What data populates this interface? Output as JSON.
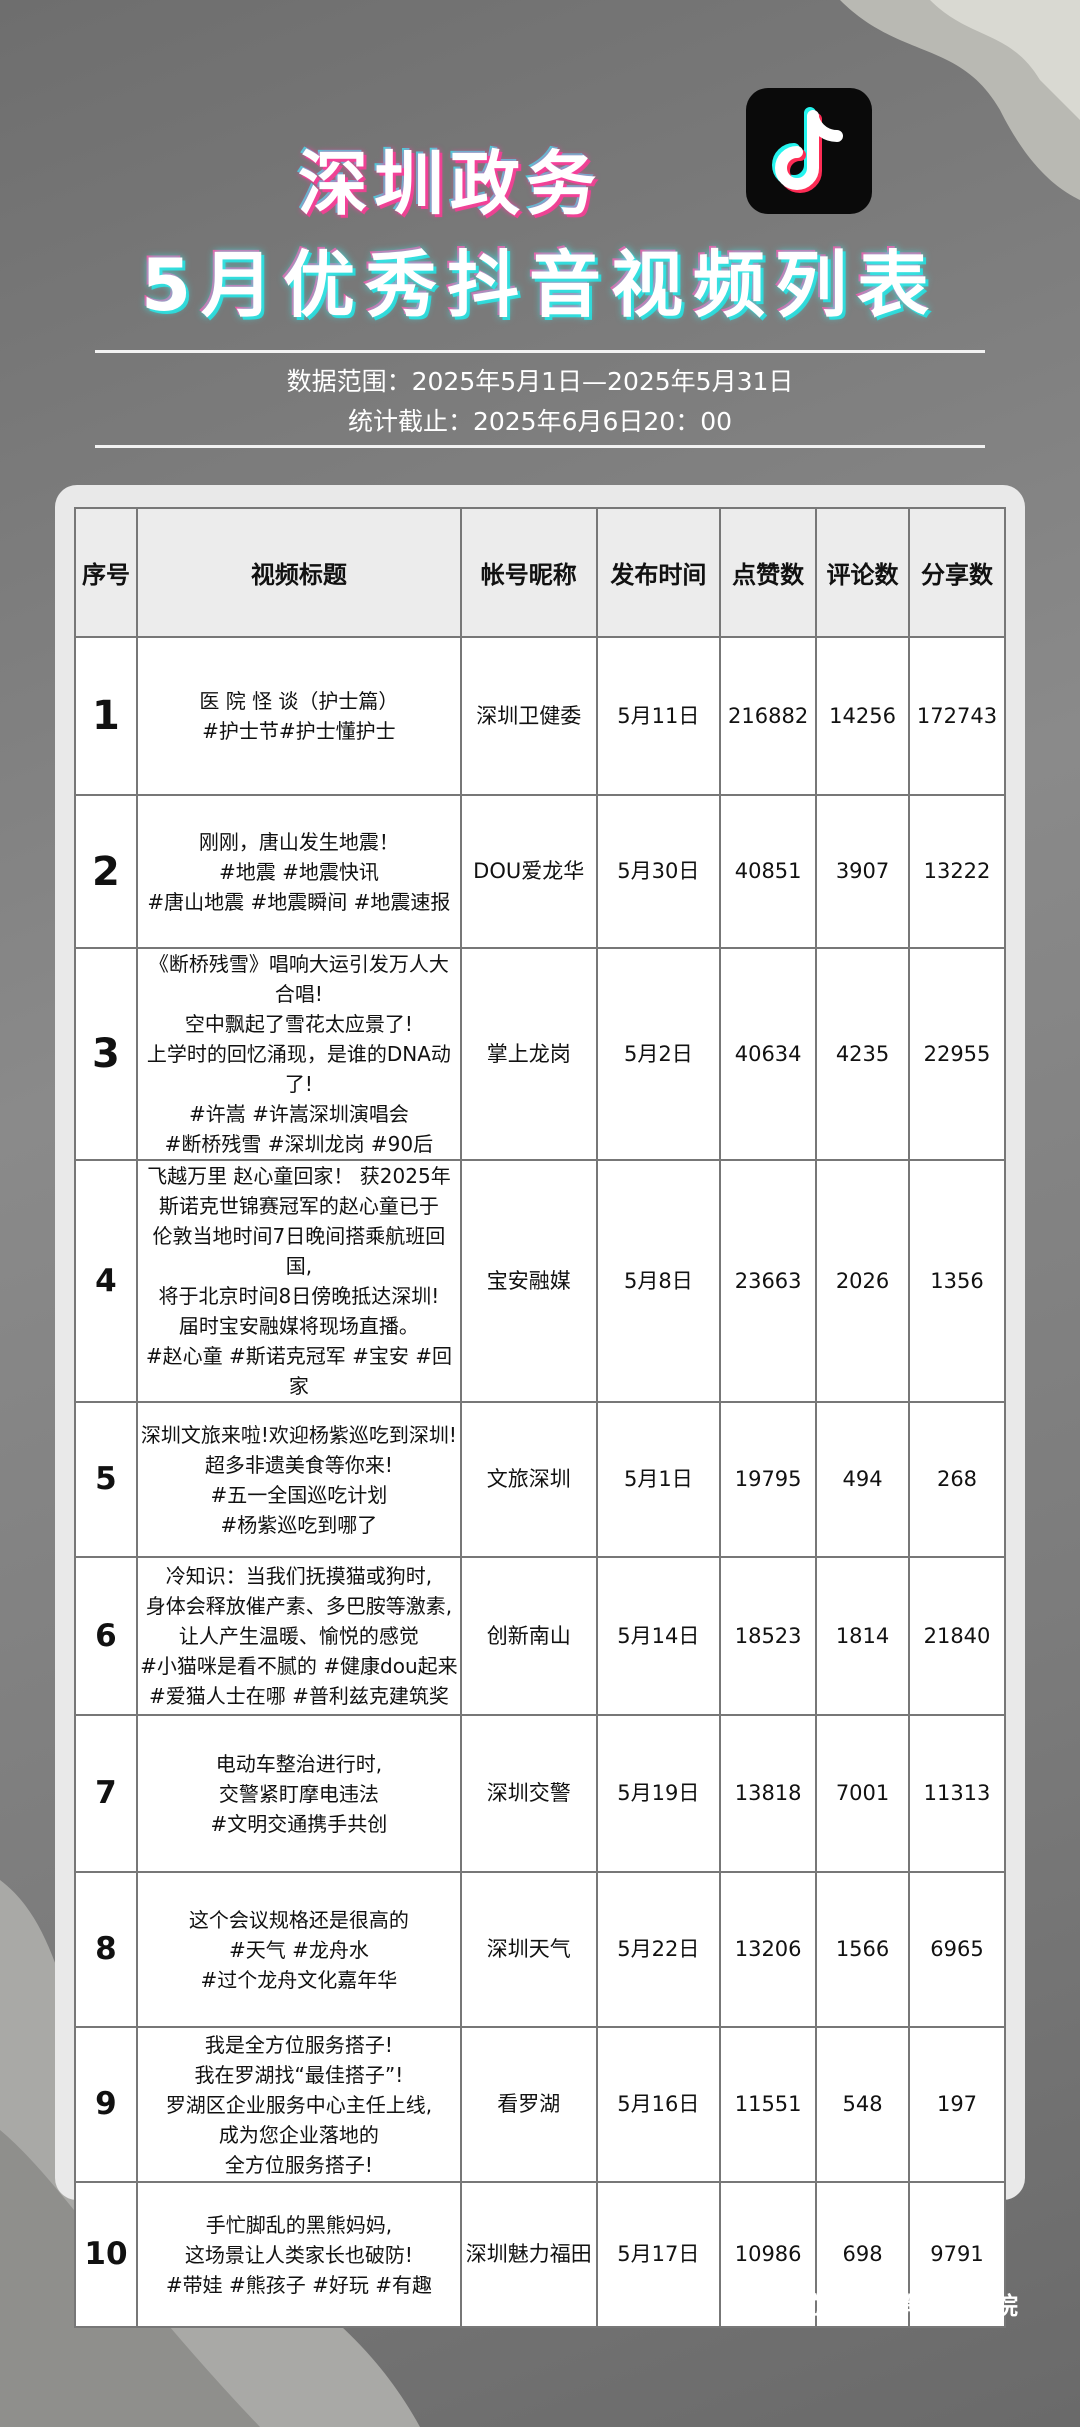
{
  "header": {
    "title1": "深圳政务",
    "title2": "5月优秀抖音视频列表",
    "logo": "tiktok-logo",
    "range": "数据范围：2025年5月1日—2025年5月31日",
    "cutoff": "统计截止：2025年6月6日20：00"
  },
  "table": {
    "columns": [
      "序号",
      "视频标题",
      "帐号昵称",
      "发布时间",
      "点赞数",
      "评论数",
      "分享数"
    ],
    "rows": [
      {
        "rank": "1",
        "title": [
          "医 院 怪 谈（护士篇）",
          "#护士节#护士懂护士"
        ],
        "account": "深圳卫健委",
        "date": "5月11日",
        "likes": "216882",
        "comments": "14256",
        "shares": "172743"
      },
      {
        "rank": "2",
        "title": [
          "刚刚，唐山发生地震！",
          "#地震 #地震快讯",
          "#唐山地震 #地震瞬间 #地震速报"
        ],
        "account": "DOU爱龙华",
        "date": "5月30日",
        "likes": "40851",
        "comments": "3907",
        "shares": "13222"
      },
      {
        "rank": "3",
        "title": [
          "《断桥残雪》唱响大运引发万人大合唱!",
          "空中飘起了雪花太应景了!",
          "上学时的回忆涌现，是谁的DNA动了!",
          "#许嵩 #许嵩深圳演唱会",
          "#断桥残雪 #深圳龙岗 #90后"
        ],
        "account": "掌上龙岗",
        "date": "5月2日",
        "likes": "40634",
        "comments": "4235",
        "shares": "22955"
      },
      {
        "rank": "4",
        "title": [
          "飞越万里 赵心童回家！ 获2025年",
          "斯诺克世锦赛冠军的赵心童已于",
          "伦敦当地时间7日晚间搭乘航班回国,",
          "将于北京时间8日傍晚抵达深圳!",
          "届时宝安融媒将现场直播。",
          "#赵心童 #斯诺克冠军 #宝安 #回家"
        ],
        "account": "宝安融媒",
        "date": "5月8日",
        "likes": "23663",
        "comments": "2026",
        "shares": "1356"
      },
      {
        "rank": "5",
        "title": [
          "深圳文旅来啦!欢迎杨紫巡吃到深圳!",
          "超多非遗美食等你来!",
          "#五一全国巡吃计划",
          "#杨紫巡吃到哪了"
        ],
        "account": "文旅深圳",
        "date": "5月1日",
        "likes": "19795",
        "comments": "494",
        "shares": "268"
      },
      {
        "rank": "6",
        "title": [
          "冷知识：当我们抚摸猫或狗时,",
          "身体会释放催产素、多巴胺等激素,",
          "让人产生温暖、愉悦的感觉",
          "#小猫咪是看不腻的 #健康dou起来",
          "#爱猫人士在哪 #普利兹克建筑奖"
        ],
        "account": "创新南山",
        "date": "5月14日",
        "likes": "18523",
        "comments": "1814",
        "shares": "21840"
      },
      {
        "rank": "7",
        "title": [
          "电动车整治进行时,",
          "交警紧盯摩电违法",
          "#文明交通携手共创"
        ],
        "account": "深圳交警",
        "date": "5月19日",
        "likes": "13818",
        "comments": "7001",
        "shares": "11313"
      },
      {
        "rank": "8",
        "title": [
          "这个会议规格还是很高的",
          "#天气 #龙舟水",
          "#过个龙舟文化嘉年华"
        ],
        "account": "深圳天气",
        "date": "5月22日",
        "likes": "13206",
        "comments": "1566",
        "shares": "6965"
      },
      {
        "rank": "9",
        "title": [
          "我是全方位服务搭子!",
          "我在罗湖找“最佳搭子”!",
          "罗湖区企业服务中心主任上线,",
          "成为您企业落地的",
          "全方位服务搭子!"
        ],
        "account": "看罗湖",
        "date": "5月16日",
        "likes": "11551",
        "comments": "548",
        "shares": "197"
      },
      {
        "rank": "10",
        "title": [
          "手忙脚乱的黑熊妈妈,",
          "这场景让人类家长也破防!",
          "#带娃 #熊孩子 #好玩 #有趣"
        ],
        "account": "深圳魅力福田",
        "date": "5月17日",
        "likes": "10986",
        "comments": "698",
        "shares": "9791"
      }
    ]
  },
  "footer": "出品单位 | 深圳舆情研究院",
  "colors": {
    "title_pink": "#ff3fa4",
    "title_cyan": "#35e0e0",
    "background": "#7c7c7c"
  }
}
